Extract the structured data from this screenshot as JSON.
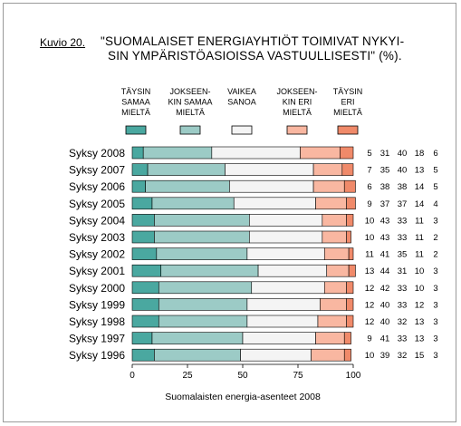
{
  "caption_label": "Kuvio 20.",
  "title_line1": "\"SUOMALAISET ENERGIAYHTIÖT TOIMIVAT NYKYI-",
  "title_line2": "SIN YMPÄRISTÖASIOISSA VASTUULLISESTI\" (%).",
  "colors": [
    "#4aa8a0",
    "#9ccbc6",
    "#f4f4f4",
    "#f9b7a1",
    "#f08a6a"
  ],
  "chart_data": {
    "type": "bar",
    "stacked": true,
    "orientation": "horizontal",
    "source": "Suomalaisten energia-asenteet 2008",
    "categories": [
      "Syksy 2008",
      "Syksy 2007",
      "Syksy 2006",
      "Syksy 2005",
      "Syksy 2004",
      "Syksy 2003",
      "Syksy 2002",
      "Syksy 2001",
      "Syksy 2000",
      "Syksy 1999",
      "Syksy 1998",
      "Syksy 1997",
      "Syksy 1996"
    ],
    "series": [
      {
        "name": [
          "TÄYSIN",
          "SAMAA",
          "MIELTÄ"
        ],
        "values": [
          5,
          7,
          6,
          9,
          10,
          10,
          11,
          13,
          12,
          12,
          12,
          9,
          10
        ]
      },
      {
        "name": [
          "JOKSEEN-",
          "KIN SAMAA",
          "MIELTÄ"
        ],
        "values": [
          31,
          35,
          38,
          37,
          43,
          43,
          41,
          44,
          42,
          40,
          40,
          41,
          39
        ]
      },
      {
        "name": [
          "VAIKEA",
          "SANOA"
        ],
        "values": [
          40,
          40,
          38,
          37,
          33,
          33,
          35,
          31,
          33,
          33,
          32,
          33,
          32
        ]
      },
      {
        "name": [
          "JOKSEEN-",
          "KIN ERI",
          "MIELTÄ"
        ],
        "values": [
          18,
          13,
          14,
          14,
          11,
          11,
          11,
          10,
          10,
          12,
          13,
          13,
          15
        ]
      },
      {
        "name": [
          "TÄYSIN",
          "ERI",
          "MIELTÄ"
        ],
        "values": [
          6,
          5,
          5,
          4,
          3,
          2,
          2,
          3,
          3,
          3,
          3,
          3,
          3
        ]
      }
    ],
    "xlim": [
      0,
      100
    ],
    "xticks": [
      "0",
      "25",
      "50",
      "75",
      "100"
    ]
  }
}
